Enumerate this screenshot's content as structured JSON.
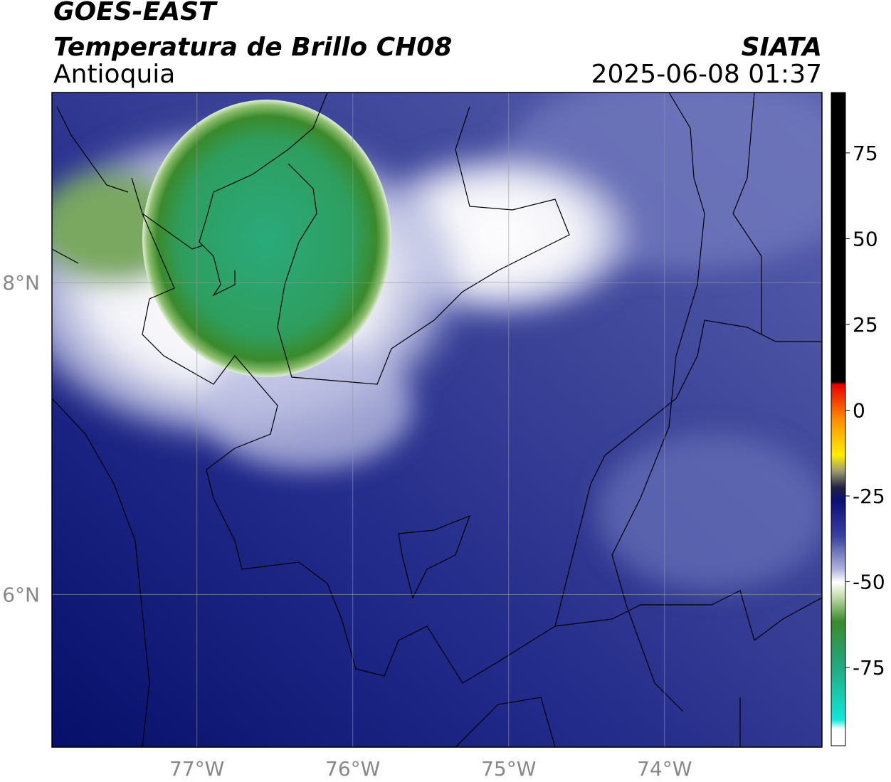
{
  "header": {
    "title": "GOES-EAST",
    "subtitle": "Temperatura de Brillo CH08",
    "region": "Antioquia",
    "source": "SIATA",
    "datetime": "2025-06-08 01:37"
  },
  "map": {
    "lon_range": [
      -77.93,
      -72.99
    ],
    "lat_range": [
      5.02,
      9.22
    ],
    "lon_ticks": [
      {
        "value": -77,
        "label": "77°W"
      },
      {
        "value": -76,
        "label": "76°W"
      },
      {
        "value": -75,
        "label": "75°W"
      },
      {
        "value": -74,
        "label": "74°W"
      }
    ],
    "lat_ticks": [
      {
        "value": 8,
        "label": "8°N"
      },
      {
        "value": 6,
        "label": "6°N"
      }
    ]
  },
  "colorbar": {
    "range": [
      -97.8,
      92.6
    ],
    "ticks": [
      75,
      50,
      25,
      0,
      -25,
      -50,
      -75
    ]
  }
}
